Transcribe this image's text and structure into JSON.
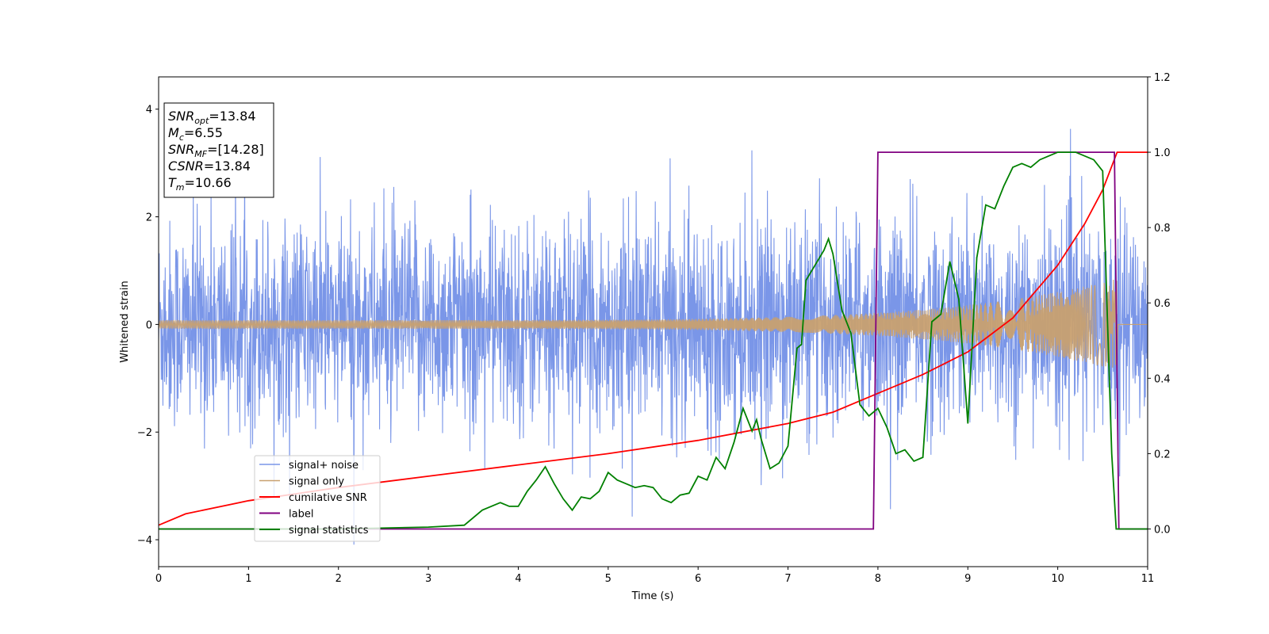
{
  "chart_data": {
    "type": "line",
    "xlabel": "Time (s)",
    "ylabel": "Whitened strain",
    "xlim": [
      0,
      11
    ],
    "ylim": [
      -4.5,
      4.6
    ],
    "y2lim": [
      -0.1,
      1.2
    ],
    "x_ticks": [
      "0",
      "1",
      "2",
      "3",
      "4",
      "5",
      "6",
      "7",
      "8",
      "9",
      "10",
      "11"
    ],
    "x_tick_values": [
      0,
      1,
      2,
      3,
      4,
      5,
      6,
      7,
      8,
      9,
      10,
      11
    ],
    "y_ticks": [
      "−4",
      "−2",
      "0",
      "2",
      "4"
    ],
    "y_tick_values": [
      -4,
      -2,
      0,
      2,
      4
    ],
    "y2_ticks": [
      "0.0",
      "0.2",
      "0.4",
      "0.6",
      "0.8",
      "1.0",
      "1.2"
    ],
    "y2_tick_values": [
      0,
      0.2,
      0.4,
      0.6,
      0.8,
      1.0,
      1.2
    ],
    "grid": false,
    "legend_position": "lower-left",
    "annotation": {
      "lines": [
        {
          "main": "SNR",
          "sub": "opt",
          "value": "=13.84"
        },
        {
          "main": "M",
          "sub": "c",
          "value": "=6.55"
        },
        {
          "main": "SNR",
          "sub": "MF",
          "value": "=[14.28]"
        },
        {
          "main": "CSNR",
          "sub": "",
          "value": "=13.84"
        },
        {
          "main": "T",
          "sub": "m",
          "value": "=10.66"
        }
      ]
    },
    "series": [
      {
        "name": "signal+ noise",
        "color": "#7a96e8",
        "axis": "left",
        "kind": "noise",
        "noise_amplitude_typical": 2.1,
        "noise_amplitude_peak": 4.2,
        "x_range": [
          0,
          11
        ]
      },
      {
        "name": "signal only",
        "color": "#c8a070",
        "axis": "left",
        "kind": "chirp",
        "x_range": [
          0,
          10.66
        ],
        "amplitude_start": 0.08,
        "amplitude_end": 0.85
      },
      {
        "name": "cumilative SNR",
        "color": "#ff0000",
        "axis": "right",
        "kind": "line",
        "x": [
          0,
          0.3,
          1,
          2,
          3,
          4,
          5,
          6,
          7,
          7.5,
          8,
          8.5,
          9,
          9.5,
          10,
          10.3,
          10.5,
          10.66,
          11
        ],
        "y": [
          0.01,
          0.04,
          0.075,
          0.11,
          0.14,
          0.17,
          0.2,
          0.235,
          0.28,
          0.31,
          0.36,
          0.41,
          0.47,
          0.56,
          0.7,
          0.81,
          0.9,
          1.0,
          1.0
        ]
      },
      {
        "name": "label",
        "color": "#800080",
        "axis": "right",
        "kind": "line",
        "x": [
          0,
          7.95,
          8.0,
          10.63,
          10.68,
          11
        ],
        "y": [
          0,
          0,
          1,
          1,
          0,
          0
        ]
      },
      {
        "name": "signal statistics",
        "color": "#008000",
        "axis": "right",
        "kind": "line",
        "x": [
          0,
          1,
          2,
          3,
          3.4,
          3.6,
          3.8,
          3.9,
          4.0,
          4.1,
          4.2,
          4.3,
          4.4,
          4.5,
          4.6,
          4.7,
          4.8,
          4.9,
          5.0,
          5.1,
          5.2,
          5.3,
          5.4,
          5.5,
          5.6,
          5.7,
          5.8,
          5.9,
          6.0,
          6.1,
          6.2,
          6.3,
          6.4,
          6.5,
          6.6,
          6.65,
          6.7,
          6.75,
          6.8,
          6.9,
          7.0,
          7.1,
          7.15,
          7.2,
          7.3,
          7.4,
          7.45,
          7.5,
          7.6,
          7.7,
          7.8,
          7.9,
          8.0,
          8.1,
          8.2,
          8.3,
          8.4,
          8.5,
          8.6,
          8.7,
          8.8,
          8.9,
          9.0,
          9.1,
          9.2,
          9.3,
          9.4,
          9.5,
          9.6,
          9.7,
          9.8,
          9.9,
          10.0,
          10.2,
          10.4,
          10.5,
          10.6,
          10.65,
          10.7,
          11
        ],
        "y": [
          0,
          0.0,
          0.0,
          0.005,
          0.01,
          0.05,
          0.07,
          0.06,
          0.06,
          0.1,
          0.13,
          0.165,
          0.12,
          0.08,
          0.05,
          0.085,
          0.08,
          0.1,
          0.15,
          0.13,
          0.12,
          0.11,
          0.115,
          0.11,
          0.08,
          0.07,
          0.09,
          0.095,
          0.14,
          0.13,
          0.19,
          0.16,
          0.23,
          0.32,
          0.26,
          0.29,
          0.24,
          0.2,
          0.16,
          0.175,
          0.22,
          0.48,
          0.49,
          0.66,
          0.7,
          0.74,
          0.77,
          0.73,
          0.58,
          0.52,
          0.33,
          0.3,
          0.32,
          0.27,
          0.2,
          0.21,
          0.18,
          0.19,
          0.55,
          0.57,
          0.71,
          0.61,
          0.28,
          0.72,
          0.86,
          0.85,
          0.91,
          0.96,
          0.97,
          0.96,
          0.98,
          0.99,
          1.0,
          1.0,
          0.98,
          0.95,
          0.2,
          0.0,
          0.0,
          0.0
        ]
      }
    ]
  }
}
